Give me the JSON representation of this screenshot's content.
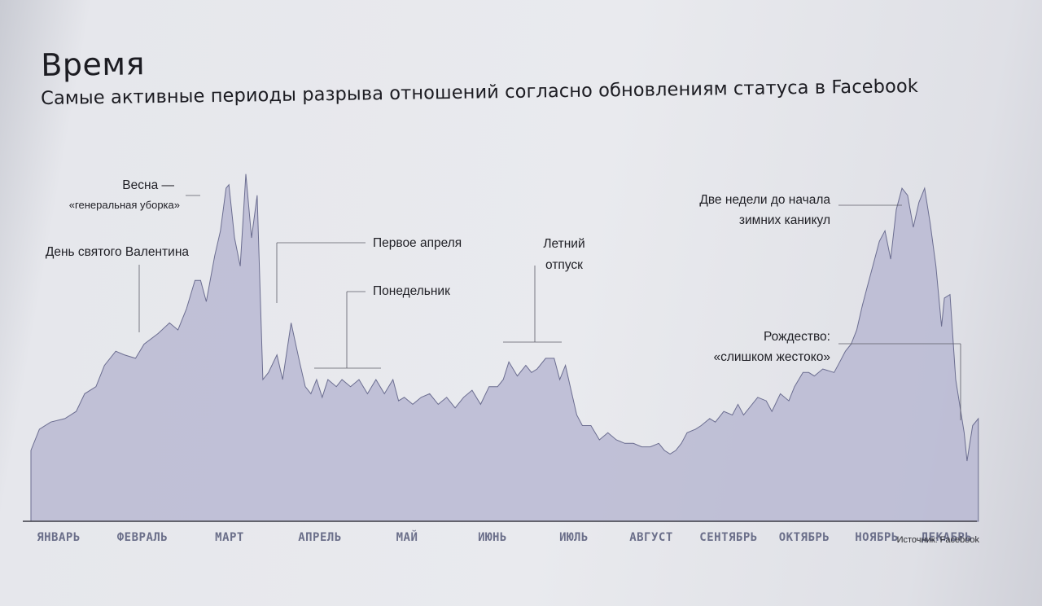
{
  "header": {
    "title": "Время",
    "subtitle": "Самые активные периоды разрыва отношений согласно обновлениям статуса в Facebook"
  },
  "source": "Источник: Facebook",
  "colors": {
    "area_fill": "#b8b9d2",
    "area_stroke": "#6b6d90",
    "axis": "#3a3a44",
    "month_label": "#6b6f8a"
  },
  "chart_data": {
    "type": "area",
    "title": "Самые активные периоды разрыва отношений согласно обновлениям статуса в Facebook",
    "xlabel": "",
    "ylabel": "",
    "grid": false,
    "legend": "none",
    "x_unit": "day of year",
    "ylim": [
      0,
      100
    ],
    "xlim": [
      0,
      365
    ],
    "categories": [
      "ЯНВАРЬ",
      "ФЕВРАЛЬ",
      "МАРТ",
      "АПРЕЛЬ",
      "МАЙ",
      "ИЮНЬ",
      "ИЮЛЬ",
      "АВГУСТ",
      "СЕНТЯБРЬ",
      "ОКТЯБРЬ",
      "НОЯБРЬ",
      "ДЕКАБРЬ"
    ],
    "month_positions": [
      10,
      38,
      72,
      100,
      140,
      172,
      205,
      238,
      268,
      298,
      328,
      355
    ],
    "series": [
      {
        "points": [
          [
            0,
            20
          ],
          [
            3,
            26
          ],
          [
            7,
            28
          ],
          [
            12,
            29
          ],
          [
            16,
            31
          ],
          [
            19,
            36
          ],
          [
            23,
            38
          ],
          [
            26,
            44
          ],
          [
            30,
            48
          ],
          [
            33,
            47
          ],
          [
            37,
            46
          ],
          [
            40,
            50
          ],
          [
            45,
            53
          ],
          [
            49,
            56
          ],
          [
            52,
            54
          ],
          [
            55,
            60
          ],
          [
            58,
            68
          ],
          [
            60,
            68
          ],
          [
            62,
            62
          ],
          [
            65,
            75
          ],
          [
            67,
            82
          ],
          [
            69,
            94
          ],
          [
            70,
            95
          ],
          [
            72,
            80
          ],
          [
            74,
            72
          ],
          [
            76,
            98
          ],
          [
            78,
            80
          ],
          [
            80,
            92
          ],
          [
            82,
            40
          ],
          [
            84,
            42
          ],
          [
            87,
            47
          ],
          [
            89,
            40
          ],
          [
            92,
            56
          ],
          [
            95,
            45
          ],
          [
            97,
            38
          ],
          [
            99,
            36
          ],
          [
            101,
            40
          ],
          [
            103,
            35
          ],
          [
            105,
            40
          ],
          [
            108,
            38
          ],
          [
            110,
            40
          ],
          [
            113,
            38
          ],
          [
            116,
            40
          ],
          [
            119,
            36
          ],
          [
            122,
            40
          ],
          [
            125,
            36
          ],
          [
            128,
            40
          ],
          [
            130,
            34
          ],
          [
            132,
            35
          ],
          [
            135,
            33
          ],
          [
            138,
            35
          ],
          [
            141,
            36
          ],
          [
            144,
            33
          ],
          [
            147,
            35
          ],
          [
            150,
            32
          ],
          [
            153,
            35
          ],
          [
            156,
            37
          ],
          [
            159,
            33
          ],
          [
            162,
            38
          ],
          [
            165,
            38
          ],
          [
            167,
            40
          ],
          [
            169,
            45
          ],
          [
            172,
            41
          ],
          [
            175,
            44
          ],
          [
            177,
            42
          ],
          [
            179,
            43
          ],
          [
            182,
            46
          ],
          [
            185,
            46
          ],
          [
            187,
            40
          ],
          [
            189,
            44
          ],
          [
            191,
            37
          ],
          [
            193,
            30
          ],
          [
            195,
            27
          ],
          [
            198,
            27
          ],
          [
            201,
            23
          ],
          [
            204,
            25
          ],
          [
            207,
            23
          ],
          [
            210,
            22
          ],
          [
            213,
            22
          ],
          [
            216,
            21
          ],
          [
            219,
            21
          ],
          [
            222,
            22
          ],
          [
            224,
            20
          ],
          [
            226,
            19
          ],
          [
            228,
            20
          ],
          [
            230,
            22
          ],
          [
            232,
            25
          ],
          [
            235,
            26
          ],
          [
            237,
            27
          ],
          [
            240,
            29
          ],
          [
            242,
            28
          ],
          [
            245,
            31
          ],
          [
            248,
            30
          ],
          [
            250,
            33
          ],
          [
            252,
            30
          ],
          [
            255,
            33
          ],
          [
            257,
            35
          ],
          [
            260,
            34
          ],
          [
            262,
            31
          ],
          [
            265,
            36
          ],
          [
            268,
            34
          ],
          [
            270,
            38
          ],
          [
            273,
            42
          ],
          [
            275,
            42
          ],
          [
            277,
            41
          ],
          [
            280,
            43
          ],
          [
            284,
            42
          ],
          [
            286,
            45
          ],
          [
            288,
            48
          ],
          [
            290,
            50
          ],
          [
            292,
            54
          ],
          [
            294,
            61
          ],
          [
            296,
            67
          ],
          [
            298,
            73
          ],
          [
            300,
            79
          ],
          [
            302,
            82
          ],
          [
            304,
            74
          ],
          [
            306,
            88
          ],
          [
            308,
            94
          ],
          [
            310,
            92
          ],
          [
            312,
            83
          ],
          [
            314,
            90
          ],
          [
            316,
            94
          ],
          [
            318,
            84
          ],
          [
            320,
            72
          ],
          [
            322,
            55
          ],
          [
            323,
            63
          ],
          [
            325,
            64
          ],
          [
            327,
            40
          ],
          [
            329,
            30
          ],
          [
            330,
            25
          ],
          [
            331,
            17
          ],
          [
            333,
            27
          ],
          [
            335,
            29
          ]
        ]
      }
    ],
    "annotations": [
      {
        "text": "Весна —"
      },
      {
        "text": "«генеральная уборка»"
      },
      {
        "text": "День святого Валентина"
      },
      {
        "text": "Первое апреля"
      },
      {
        "text": "Понедельник"
      },
      {
        "text": "Летний"
      },
      {
        "text": "отпуск"
      },
      {
        "text": "Две недели до начала"
      },
      {
        "text": "зимних каникул"
      },
      {
        "text": "Рождество:"
      },
      {
        "text": "«слишком жестоко»"
      }
    ]
  }
}
